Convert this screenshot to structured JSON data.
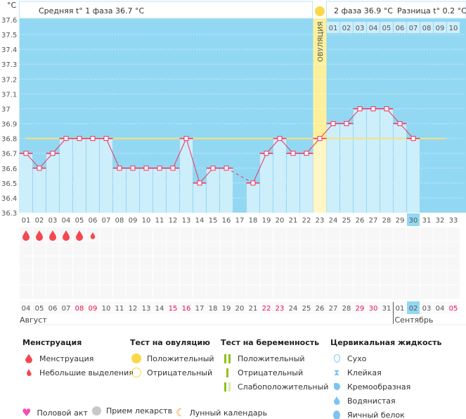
{
  "header": {
    "unit": "°C",
    "phase1": "Средняя t° 1 фаза 36.7 °C",
    "phase2": "2 фаза 36.9 °C",
    "diff": "Разница t° 0.2 °C",
    "ovulation_label": "ОВУЛЯЦИЯ",
    "phase2_days": [
      "01",
      "02",
      "03",
      "04",
      "05",
      "06",
      "07",
      "08",
      "09",
      "10"
    ]
  },
  "chart_data": {
    "type": "bar",
    "ylabel": "°C",
    "ylim": [
      36.3,
      37.6
    ],
    "yticks": [
      "37.6",
      "37.5",
      "37.4",
      "37.3",
      "37.2",
      "37.1",
      "37",
      "36.9",
      "36.8",
      "36.7",
      "36.6",
      "36.5",
      "36.4",
      "36.3"
    ],
    "cycle_days": [
      "01",
      "02",
      "03",
      "04",
      "05",
      "06",
      "07",
      "08",
      "09",
      "10",
      "11",
      "12",
      "13",
      "14",
      "15",
      "16",
      "17",
      "18",
      "19",
      "20",
      "21",
      "22",
      "23",
      "24",
      "25",
      "26",
      "27",
      "28",
      "29",
      "30",
      "31",
      "32",
      "33"
    ],
    "temperatures": [
      36.7,
      36.6,
      36.7,
      36.8,
      36.8,
      36.8,
      36.8,
      36.6,
      36.6,
      36.6,
      36.6,
      36.6,
      36.8,
      36.5,
      36.6,
      36.6,
      null,
      36.5,
      36.7,
      36.8,
      36.7,
      36.7,
      36.8,
      36.9,
      36.9,
      37.0,
      37.0,
      37.0,
      36.9,
      36.8,
      null,
      null,
      null
    ],
    "cover_line": 36.8,
    "ovulation_day": 23,
    "current_day": 30,
    "menstruation": [
      "heavy",
      "heavy",
      "heavy",
      "heavy",
      "heavy",
      "light"
    ],
    "dates": [
      "04",
      "05",
      "06",
      "07",
      "08",
      "09",
      "10",
      "11",
      "12",
      "13",
      "14",
      "15",
      "16",
      "17",
      "18",
      "19",
      "20",
      "21",
      "22",
      "23",
      "24",
      "25",
      "26",
      "27",
      "28",
      "29",
      "30",
      "31",
      "01",
      "02",
      "03",
      "04",
      "05"
    ],
    "weekend_dates_idx": [
      4,
      5,
      11,
      12,
      18,
      19,
      25,
      26,
      32
    ],
    "months": [
      "Август",
      "Сентябрь"
    ],
    "colors": {
      "bg": "#93d8f2",
      "bar": "#cdeefb",
      "ovulation": "#fdf09c",
      "ovulation_bar": "#fef6c6",
      "line": "#f0305c",
      "cover": "#f8e27a",
      "weekend": "#e8124c",
      "drop": "#f5474f"
    }
  },
  "legend": {
    "menstruation": {
      "title": "Менструация",
      "items": [
        "Менструация",
        "Небольшие выделения"
      ]
    },
    "ovulation_test": {
      "title": "Тест на овуляцию",
      "items": [
        "Положительный",
        "Отрицательный"
      ]
    },
    "pregnancy_test": {
      "title": "Тест на беременность",
      "items": [
        "Положительный",
        "Отрицательный",
        "Слабоположительный"
      ]
    },
    "cervical": {
      "title": "Цервикальная жидкость",
      "items": [
        "Сухо",
        "Клейкая",
        "Кремообразная",
        "Водянистая",
        "Яичный белок"
      ]
    },
    "bottom": [
      "Половой акт",
      "Прием лекарств",
      "Лунный календарь"
    ]
  }
}
